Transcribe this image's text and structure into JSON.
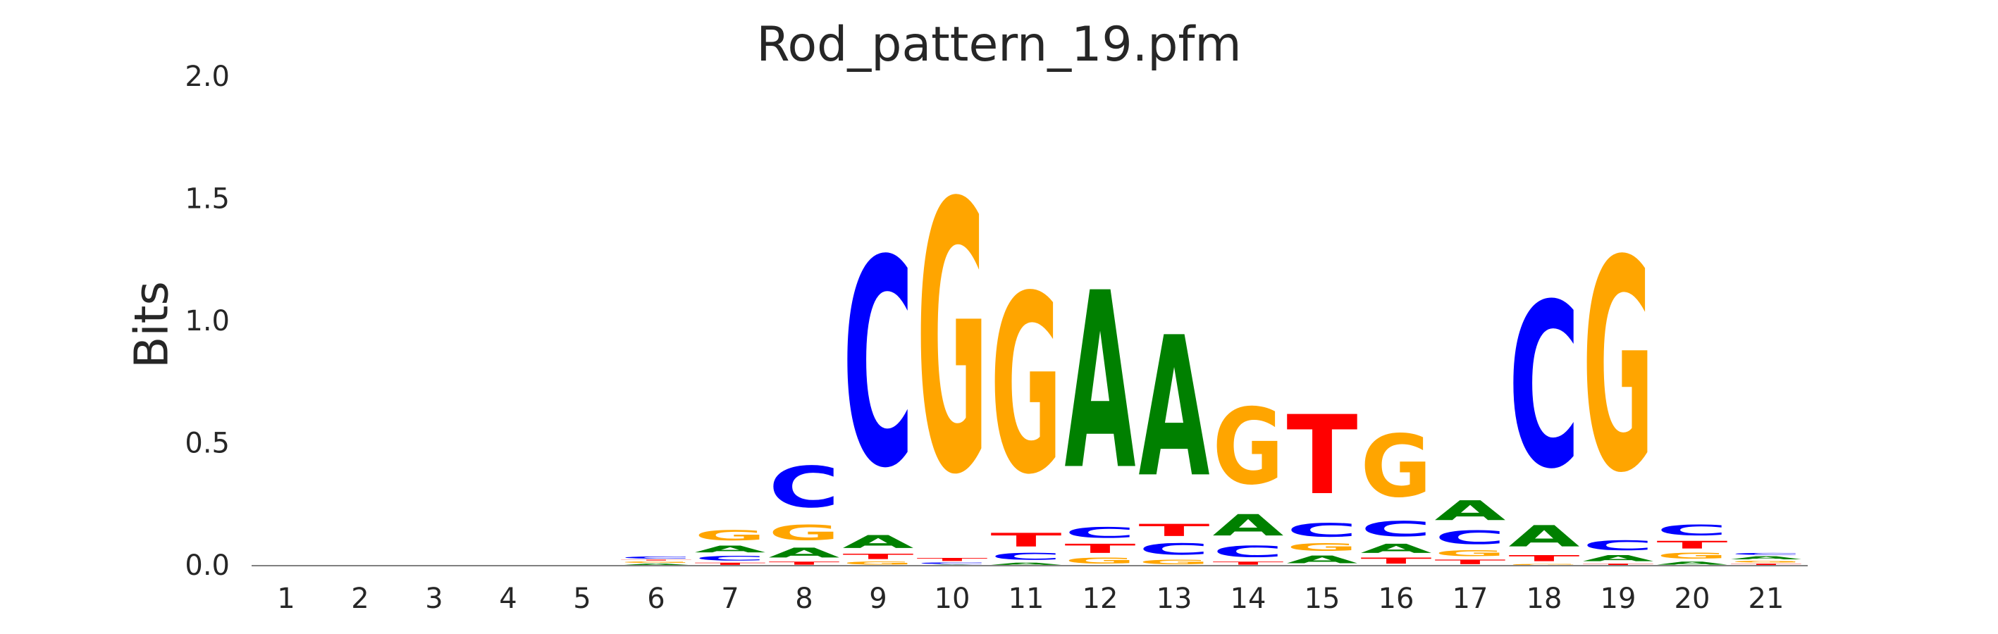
{
  "chart_data": {
    "type": "sequence_logo",
    "title": "Rod_pattern_19.pfm",
    "xlabel": "",
    "ylabel": "Bits",
    "ylim": [
      0,
      2.0
    ],
    "yticks": [
      "0.0",
      "0.5",
      "1.0",
      "1.5",
      "2.0"
    ],
    "grid": false,
    "colors": {
      "A": "#008000",
      "C": "#0000ff",
      "G": "#ffa500",
      "T": "#ff0000"
    },
    "positions": [
      {
        "label": "1",
        "stack": []
      },
      {
        "label": "2",
        "stack": []
      },
      {
        "label": "3",
        "stack": []
      },
      {
        "label": "4",
        "stack": []
      },
      {
        "label": "5",
        "stack": []
      },
      {
        "label": "6",
        "stack": [
          {
            "base": "A",
            "bits": 0.01
          },
          {
            "base": "G",
            "bits": 0.01
          },
          {
            "base": "T",
            "bits": 0.006
          },
          {
            "base": "C",
            "bits": 0.014
          }
        ]
      },
      {
        "label": "7",
        "stack": [
          {
            "base": "T",
            "bits": 0.015
          },
          {
            "base": "C",
            "bits": 0.03
          },
          {
            "base": "A",
            "bits": 0.045
          },
          {
            "base": "G",
            "bits": 0.065
          }
        ]
      },
      {
        "label": "8",
        "stack": [
          {
            "base": "T",
            "bits": 0.02
          },
          {
            "base": "A",
            "bits": 0.065
          },
          {
            "base": "G",
            "bits": 0.1
          },
          {
            "base": "C",
            "bits": 0.27
          }
        ]
      },
      {
        "label": "9",
        "stack": [
          {
            "base": "G",
            "bits": 0.02
          },
          {
            "base": "T",
            "bits": 0.035
          },
          {
            "base": "A",
            "bits": 0.085
          },
          {
            "base": "C",
            "bits": 1.36
          }
        ]
      },
      {
        "label": "10",
        "stack": [
          {
            "base": "A",
            "bits": 0.005
          },
          {
            "base": "C",
            "bits": 0.01
          },
          {
            "base": "T",
            "bits": 0.02
          },
          {
            "base": "G",
            "bits": 1.77
          }
        ]
      },
      {
        "label": "11",
        "stack": [
          {
            "base": "A",
            "bits": 0.015
          },
          {
            "base": "C",
            "bits": 0.045
          },
          {
            "base": "T",
            "bits": 0.09
          },
          {
            "base": "G",
            "bits": 1.17
          }
        ]
      },
      {
        "label": "12",
        "stack": [
          {
            "base": "G",
            "bits": 0.04
          },
          {
            "base": "T",
            "bits": 0.06
          },
          {
            "base": "C",
            "bits": 0.07
          },
          {
            "base": "A",
            "bits": 1.16
          }
        ]
      },
      {
        "label": "13",
        "stack": [
          {
            "base": "G",
            "bits": 0.03
          },
          {
            "base": "C",
            "bits": 0.075
          },
          {
            "base": "T",
            "bits": 0.08
          },
          {
            "base": "A",
            "bits": 0.92
          }
        ]
      },
      {
        "label": "14",
        "stack": [
          {
            "base": "T",
            "bits": 0.02
          },
          {
            "base": "C",
            "bits": 0.075
          },
          {
            "base": "A",
            "bits": 0.14
          },
          {
            "base": "G",
            "bits": 0.5
          }
        ]
      },
      {
        "label": "15",
        "stack": [
          {
            "base": "A",
            "bits": 0.05
          },
          {
            "base": "G",
            "bits": 0.05
          },
          {
            "base": "C",
            "bits": 0.09
          },
          {
            "base": "T",
            "bits": 0.52
          }
        ]
      },
      {
        "label": "16",
        "stack": [
          {
            "base": "T",
            "bits": 0.04
          },
          {
            "base": "A",
            "bits": 0.06
          },
          {
            "base": "C",
            "bits": 0.1
          },
          {
            "base": "G",
            "bits": 0.41
          }
        ]
      },
      {
        "label": "17",
        "stack": [
          {
            "base": "T",
            "bits": 0.03
          },
          {
            "base": "G",
            "bits": 0.04
          },
          {
            "base": "C",
            "bits": 0.09
          },
          {
            "base": "A",
            "bits": 0.13
          }
        ]
      },
      {
        "label": "18",
        "stack": [
          {
            "base": "G",
            "bits": 0.01
          },
          {
            "base": "T",
            "bits": 0.04
          },
          {
            "base": "A",
            "bits": 0.14
          },
          {
            "base": "C",
            "bits": 1.08
          }
        ]
      },
      {
        "label": "19",
        "stack": [
          {
            "base": "T",
            "bits": 0.01
          },
          {
            "base": "A",
            "bits": 0.04
          },
          {
            "base": "C",
            "bits": 0.065
          },
          {
            "base": "G",
            "bits": 1.39
          }
        ]
      },
      {
        "label": "20",
        "stack": [
          {
            "base": "A",
            "bits": 0.02
          },
          {
            "base": "G",
            "bits": 0.04
          },
          {
            "base": "T",
            "bits": 0.05
          },
          {
            "base": "C",
            "bits": 0.07
          }
        ]
      },
      {
        "label": "21",
        "stack": [
          {
            "base": "T",
            "bits": 0.01
          },
          {
            "base": "G",
            "bits": 0.012
          },
          {
            "base": "A",
            "bits": 0.02
          },
          {
            "base": "C",
            "bits": 0.012
          }
        ]
      }
    ]
  }
}
